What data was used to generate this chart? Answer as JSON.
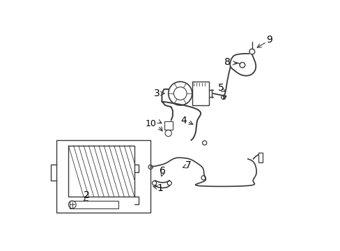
{
  "bg_color": "#ffffff",
  "line_color": "#3a3a3a",
  "label_color": "#000000",
  "figsize": [
    4.89,
    3.6
  ],
  "dpi": 100,
  "label_fontsize": 10
}
